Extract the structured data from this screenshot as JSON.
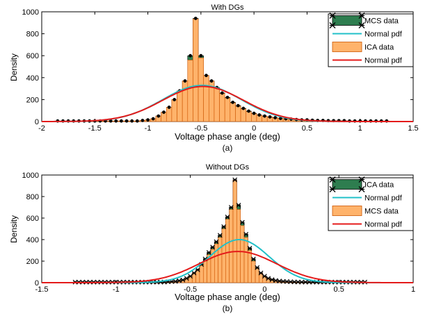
{
  "colors": {
    "green": "#2e7d4f",
    "orange": "#ffb36b",
    "orange_edge": "#cc5500",
    "cyan": "#22c0c8",
    "red": "#e41a1a",
    "black": "#000000"
  },
  "chart_data": [
    {
      "type": "bar",
      "title": "With DGs",
      "xlabel": "Voltage phase angle (deg)",
      "ylabel": "Density",
      "caption": "(a)",
      "xlim": [
        -2,
        1.5
      ],
      "ylim": [
        0,
        1000
      ],
      "xticks": [
        -2,
        -1.5,
        -1,
        -0.5,
        0,
        0.5,
        1,
        1.5
      ],
      "yticks": [
        0,
        200,
        400,
        600,
        800,
        1000
      ],
      "legend_position": "top-right",
      "legend": [
        "MCS data",
        "Normal pdf",
        "ICA data",
        "Normal pdf"
      ],
      "bins": {
        "x": [
          -1.85,
          -1.8,
          -1.75,
          -1.7,
          -1.65,
          -1.6,
          -1.55,
          -1.5,
          -1.45,
          -1.4,
          -1.35,
          -1.3,
          -1.25,
          -1.2,
          -1.15,
          -1.1,
          -1.05,
          -1.0,
          -0.95,
          -0.9,
          -0.85,
          -0.8,
          -0.75,
          -0.7,
          -0.65,
          -0.6,
          -0.55,
          -0.5,
          -0.45,
          -0.4,
          -0.35,
          -0.3,
          -0.25,
          -0.2,
          -0.15,
          -0.1,
          -0.05,
          0.0,
          0.05,
          0.1,
          0.15,
          0.2,
          0.25,
          0.3,
          0.35,
          0.4,
          0.45,
          0.5,
          0.55,
          0.6,
          0.65,
          0.7,
          0.75,
          0.8,
          0.85,
          0.9,
          0.95,
          1.0,
          1.05,
          1.1,
          1.15,
          1.2,
          1.25
        ],
        "mcs": [
          5,
          5,
          5,
          5,
          5,
          5,
          5,
          5,
          5,
          5,
          5,
          5,
          5,
          5,
          5,
          5,
          10,
          15,
          25,
          50,
          85,
          130,
          200,
          280,
          370,
          600,
          940,
          600,
          420,
          370,
          310,
          260,
          220,
          175,
          145,
          120,
          95,
          75,
          60,
          50,
          42,
          35,
          28,
          25,
          22,
          18,
          15,
          15,
          12,
          10,
          10,
          8,
          8,
          8,
          8,
          5,
          5,
          5,
          5,
          5,
          5,
          5,
          5
        ],
        "ica": [
          5,
          5,
          5,
          5,
          5,
          5,
          5,
          5,
          5,
          5,
          5,
          5,
          5,
          5,
          5,
          5,
          10,
          15,
          25,
          50,
          85,
          130,
          200,
          280,
          370,
          560,
          935,
          580,
          420,
          370,
          305,
          255,
          215,
          170,
          140,
          115,
          90,
          72,
          58,
          48,
          40,
          33,
          28,
          24,
          20,
          17,
          15,
          14,
          12,
          10,
          10,
          8,
          8,
          8,
          7,
          5,
          5,
          5,
          5,
          5,
          5,
          5,
          5
        ]
      },
      "normal_pdfs": [
        {
          "name": "Normal pdf",
          "color": "cyan",
          "mean": -0.49,
          "std": 0.37
        },
        {
          "name": "Normal pdf",
          "color": "red",
          "mean": -0.48,
          "std": 0.38
        }
      ]
    },
    {
      "type": "bar",
      "title": "Without DGs",
      "xlabel": "Voltage phase angle (deg)",
      "ylabel": "Density",
      "caption": "(b)",
      "xlim": [
        -1.5,
        1
      ],
      "ylim": [
        0,
        1000
      ],
      "xticks": [
        -1.5,
        -1,
        -0.5,
        0,
        0.5,
        1
      ],
      "yticks": [
        0,
        200,
        400,
        600,
        800,
        1000
      ],
      "legend_position": "top-right",
      "legend": [
        "ICA data",
        "Normal pdf",
        "MCS data",
        "Normal pdf"
      ],
      "bins": {
        "x": [
          -1.275,
          -1.25,
          -1.225,
          -1.2,
          -1.175,
          -1.15,
          -1.125,
          -1.1,
          -1.075,
          -1.05,
          -1.025,
          -1.0,
          -0.975,
          -0.95,
          -0.925,
          -0.9,
          -0.875,
          -0.85,
          -0.825,
          -0.8,
          -0.775,
          -0.75,
          -0.725,
          -0.7,
          -0.675,
          -0.65,
          -0.625,
          -0.6,
          -0.575,
          -0.55,
          -0.525,
          -0.5,
          -0.475,
          -0.45,
          -0.425,
          -0.4,
          -0.375,
          -0.35,
          -0.325,
          -0.3,
          -0.275,
          -0.25,
          -0.225,
          -0.2,
          -0.175,
          -0.15,
          -0.125,
          -0.1,
          -0.075,
          -0.05,
          -0.025,
          0.0,
          0.025,
          0.05,
          0.075,
          0.1,
          0.125,
          0.15,
          0.175,
          0.2,
          0.225,
          0.25,
          0.275,
          0.3,
          0.325,
          0.35,
          0.375,
          0.4,
          0.425,
          0.45,
          0.475,
          0.5,
          0.525,
          0.55,
          0.575,
          0.6,
          0.625,
          0.65,
          0.675
        ],
        "ica": [
          5,
          5,
          5,
          5,
          5,
          5,
          5,
          5,
          5,
          5,
          5,
          5,
          5,
          5,
          5,
          5,
          5,
          5,
          5,
          5,
          5,
          5,
          5,
          5,
          5,
          8,
          10,
          12,
          18,
          25,
          40,
          60,
          90,
          120,
          170,
          220,
          280,
          330,
          380,
          440,
          520,
          610,
          700,
          955,
          720,
          560,
          450,
          320,
          220,
          140,
          90,
          60,
          40,
          28,
          20,
          15,
          12,
          10,
          8,
          7,
          6,
          5,
          5,
          5,
          5,
          5,
          5,
          5,
          5,
          5,
          5,
          5,
          5,
          5,
          5,
          5,
          5,
          5,
          5
        ],
        "mcs": [
          5,
          5,
          5,
          5,
          5,
          5,
          5,
          5,
          5,
          5,
          5,
          5,
          5,
          5,
          5,
          5,
          5,
          5,
          5,
          5,
          5,
          5,
          5,
          5,
          5,
          8,
          10,
          12,
          18,
          25,
          40,
          60,
          90,
          120,
          160,
          210,
          260,
          310,
          360,
          420,
          500,
          590,
          680,
          950,
          680,
          530,
          420,
          300,
          200,
          130,
          85,
          55,
          38,
          26,
          20,
          15,
          12,
          10,
          8,
          7,
          6,
          5,
          5,
          5,
          5,
          5,
          5,
          5,
          5,
          5,
          5,
          5,
          5,
          5,
          5,
          5,
          5,
          5,
          5
        ]
      },
      "normal_pdfs": [
        {
          "name": "Normal pdf",
          "color": "cyan",
          "mean": -0.17,
          "std": 0.2
        },
        {
          "name": "Normal pdf",
          "color": "red",
          "mean": -0.18,
          "std": 0.26
        }
      ]
    }
  ]
}
